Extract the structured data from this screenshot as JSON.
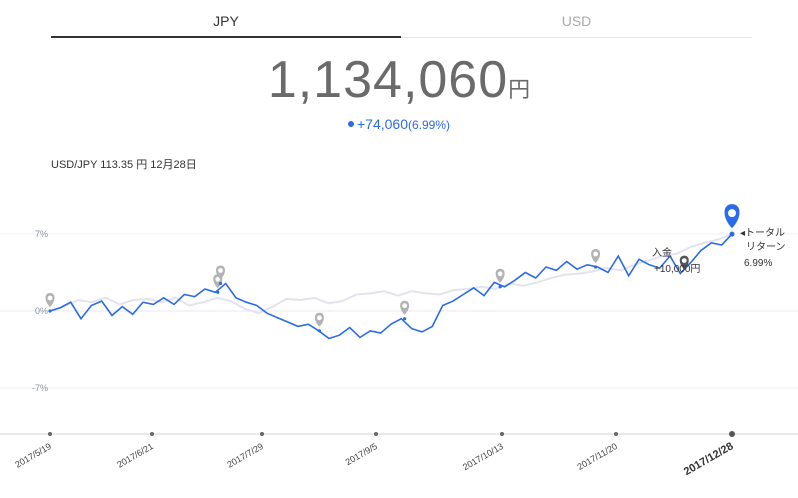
{
  "tabs": [
    {
      "label": "JPY",
      "active": true
    },
    {
      "label": "USD",
      "active": false
    }
  ],
  "total": {
    "value": "1,134,060",
    "unit": "円"
  },
  "change": {
    "amount": "+74,060",
    "percent": "(6.99%)"
  },
  "rate": "USD/JPY 113.35 円 12月28日",
  "colors": {
    "accent": "#2a6be8",
    "benchmark": "#e3e3ef",
    "marker_grey": "#b3b3b3"
  },
  "chart_data": {
    "type": "line",
    "title": "",
    "xlabel": "",
    "ylabel": "",
    "y_ticks": [
      "7%",
      "0%",
      "-7%"
    ],
    "ylim": [
      -11,
      11
    ],
    "x_ticks": [
      "2017/5/19",
      "2017/6/21",
      "2017/7/29",
      "2017/9/5",
      "2017/10/13",
      "2017/11/20",
      "2017/12/28"
    ],
    "series": [
      {
        "values": [
          0.0,
          0.3,
          0.8,
          -0.7,
          0.5,
          0.9,
          -0.4,
          0.4,
          -0.3,
          0.8,
          0.6,
          1.2,
          0.6,
          1.5,
          1.3,
          2.0,
          1.7,
          2.5,
          1.2,
          0.8,
          0.5,
          -0.2,
          -0.6,
          -1.0,
          -1.4,
          -1.2,
          -1.8,
          -2.5,
          -2.2,
          -1.5,
          -2.4,
          -1.8,
          -2.0,
          -1.2,
          -0.7,
          -1.6,
          -1.9,
          -1.4,
          0.5,
          0.9,
          1.5,
          2.1,
          1.4,
          2.6,
          2.2,
          2.8,
          3.5,
          3.0,
          4.0,
          3.7,
          4.5,
          3.8,
          4.2,
          4.0,
          3.5,
          5.0,
          3.2,
          4.7,
          4.2,
          3.9,
          5.0,
          3.4,
          4.4,
          5.5,
          6.2,
          6.0,
          6.99
        ],
        "color": "#2a6be8"
      },
      {
        "values": [
          0.0,
          0.4,
          1.0,
          0.8,
          1.2,
          0.6,
          1.0,
          1.1,
          0.8,
          1.2,
          0.5,
          0.8,
          1.2,
          0.9,
          0.2,
          -0.2,
          0.4,
          1.1,
          1.0,
          1.2,
          0.7,
          0.9,
          1.5,
          1.6,
          1.8,
          1.4,
          1.8,
          1.6,
          1.5,
          1.9,
          2.0,
          2.2,
          2.0,
          2.5,
          2.3,
          2.6,
          3.0,
          3.3,
          3.4,
          3.6,
          3.9,
          3.7,
          4.2,
          4.6,
          5.0,
          5.2,
          5.8,
          6.2,
          6.5,
          6.99
        ],
        "color": "#e3e3ef"
      }
    ],
    "annotations": [
      {
        "label": "入金",
        "value": "+10,000円"
      },
      {
        "label": "トータル",
        "value": "リターン"
      },
      {
        "label": "",
        "value": "6.99%"
      }
    ],
    "grid": true,
    "legend": "none"
  }
}
